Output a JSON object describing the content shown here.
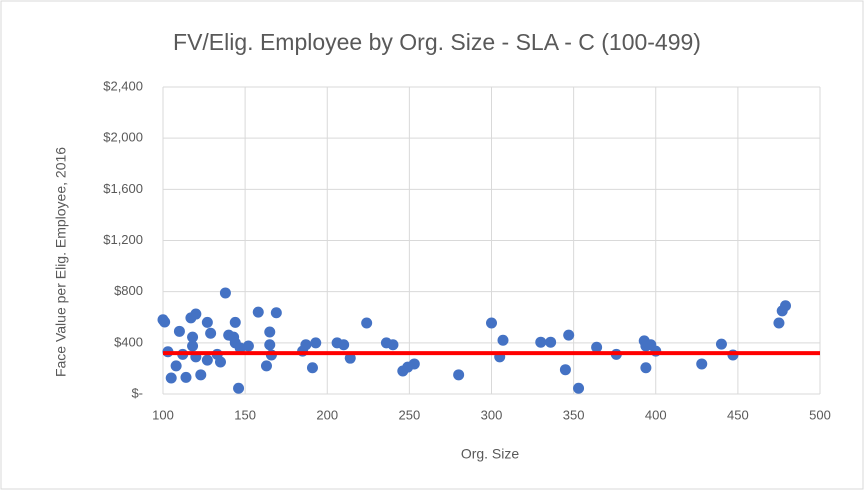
{
  "chart_data": {
    "type": "scatter",
    "title": "FV/Elig. Employee by Org. Size - SLA - C (100-499)",
    "x_label": "Org. Size",
    "y_label": "Face Value per Elig. Employee,  2016",
    "color": "#4472c4",
    "grid": true,
    "xlim": [
      100,
      500
    ],
    "xticks": [
      100,
      150,
      200,
      250,
      300,
      350,
      400,
      450,
      500
    ],
    "ylim": [
      0,
      2400
    ],
    "yticks": [
      {
        "value": 0,
        "label": "$-"
      },
      {
        "value": 400,
        "label": "$400"
      },
      {
        "value": 800,
        "label": "$800"
      },
      {
        "value": 1200,
        "label": "$1,200"
      },
      {
        "value": 1600,
        "label": "$1,600"
      },
      {
        "value": 2000,
        "label": "$2,000"
      },
      {
        "value": 2400,
        "label": "$2,400"
      }
    ],
    "reference_line": {
      "value": 320,
      "color": "#ff0000"
    },
    "x": [
      100,
      101,
      103,
      105,
      108,
      110,
      112,
      114,
      117,
      118,
      118,
      120,
      120,
      123,
      127,
      127,
      129,
      133,
      135,
      138,
      140,
      143,
      144,
      144,
      146,
      147,
      152,
      158,
      163,
      165,
      165,
      166,
      169,
      185,
      187,
      191,
      193,
      206,
      210,
      214,
      224,
      236,
      240,
      246,
      249,
      253,
      280,
      300,
      305,
      307,
      330,
      336,
      347,
      345,
      353,
      364,
      376,
      393,
      394,
      394,
      397,
      400,
      428,
      440,
      447,
      475,
      477,
      479
    ],
    "values": [
      580,
      563,
      330,
      125,
      220,
      490,
      310,
      130,
      595,
      445,
      375,
      625,
      290,
      150,
      560,
      265,
      475,
      310,
      250,
      790,
      460,
      445,
      560,
      400,
      45,
      360,
      375,
      640,
      220,
      385,
      485,
      305,
      635,
      335,
      385,
      205,
      400,
      400,
      385,
      280,
      555,
      400,
      385,
      180,
      210,
      235,
      150,
      555,
      290,
      420,
      405,
      405,
      460,
      190,
      45,
      365,
      310,
      415,
      375,
      205,
      385,
      335,
      235,
      390,
      305,
      555,
      650,
      690
    ]
  }
}
